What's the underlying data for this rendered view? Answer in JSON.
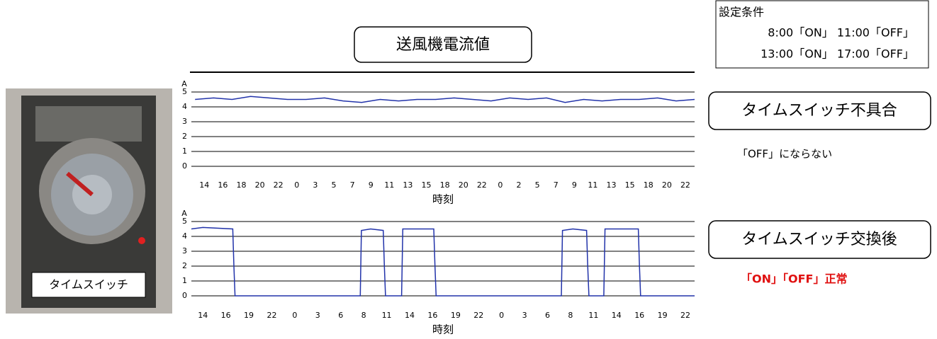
{
  "title": "送風機電流値",
  "conditions": {
    "heading": "設定条件",
    "lines": [
      "8:00「ON」 11:00「OFF」",
      "13:00「ON」 17:00「OFF」"
    ]
  },
  "photo_label": "タイムスイッチ",
  "panels": [
    {
      "label": "タイムスイッチ不具合",
      "note": "「OFF」にならない"
    },
    {
      "label": "タイムスイッチ交換後",
      "note": "「ON」「OFF」正常"
    }
  ],
  "chart_data": [
    {
      "type": "line",
      "y_label": "A",
      "x_label": "時刻",
      "color": "#2233aa",
      "grid": true,
      "x": [
        -0.5,
        0.5,
        1.5,
        2.5,
        3.5,
        4.5,
        5.5,
        6.5,
        7.5,
        8.5,
        9.5,
        10.5,
        11.5,
        12.5,
        13.5,
        14.5,
        15.5,
        16.5,
        17.5,
        18.5,
        19.5,
        20.5,
        21.5,
        22.5,
        23.5,
        24.5,
        25.5,
        26.5
      ],
      "values": [
        4.5,
        4.6,
        4.5,
        4.7,
        4.6,
        4.5,
        4.5,
        4.6,
        4.4,
        4.3,
        4.5,
        4.4,
        4.5,
        4.5,
        4.6,
        4.5,
        4.4,
        4.6,
        4.5,
        4.6,
        4.3,
        4.5,
        4.4,
        4.5,
        4.5,
        4.6,
        4.4,
        4.5
      ],
      "xlim": [
        -0.7,
        26.5
      ],
      "ylim": [
        0,
        5
      ],
      "yticks": [
        0,
        1,
        2,
        3,
        4,
        5
      ],
      "xticks": [
        {
          "value": 0,
          "label": "14"
        },
        {
          "value": 1,
          "label": "16"
        },
        {
          "value": 2,
          "label": "18"
        },
        {
          "value": 3,
          "label": "20"
        },
        {
          "value": 4,
          "label": "22"
        },
        {
          "value": 5,
          "label": "0"
        },
        {
          "value": 6,
          "label": "3"
        },
        {
          "value": 7,
          "label": "5"
        },
        {
          "value": 8,
          "label": "7"
        },
        {
          "value": 9,
          "label": "9"
        },
        {
          "value": 10,
          "label": "11"
        },
        {
          "value": 11,
          "label": "13"
        },
        {
          "value": 12,
          "label": "15"
        },
        {
          "value": 13,
          "label": "18"
        },
        {
          "value": 14,
          "label": "20"
        },
        {
          "value": 15,
          "label": "22"
        },
        {
          "value": 16,
          "label": "0"
        },
        {
          "value": 17,
          "label": "2"
        },
        {
          "value": 18,
          "label": "5"
        },
        {
          "value": 19,
          "label": "7"
        },
        {
          "value": 20,
          "label": "9"
        },
        {
          "value": 21,
          "label": "11"
        },
        {
          "value": 22,
          "label": "13"
        },
        {
          "value": 23,
          "label": "15"
        },
        {
          "value": 24,
          "label": "18"
        },
        {
          "value": 25,
          "label": "20"
        },
        {
          "value": 26,
          "label": "22"
        }
      ]
    },
    {
      "type": "line",
      "y_label": "A",
      "x_label": "時刻",
      "color": "#2233aa",
      "grid": true,
      "x": [
        -0.5,
        0,
        1.3,
        1.35,
        1.4,
        6.85,
        6.9,
        7.3,
        7.85,
        7.9,
        7.95,
        8.65,
        8.7,
        10.05,
        10.1,
        10.15,
        15.6,
        15.65,
        16.1,
        16.7,
        16.75,
        16.8,
        17.45,
        17.5,
        18.95,
        19,
        19.05,
        21.4
      ],
      "values": [
        4.5,
        4.6,
        4.5,
        2,
        0,
        0,
        4.4,
        4.5,
        4.4,
        2,
        0,
        0,
        4.5,
        4.5,
        2,
        0,
        0,
        4.4,
        4.5,
        4.4,
        2,
        0,
        0,
        4.5,
        4.5,
        2,
        0,
        0
      ],
      "xlim": [
        -0.5,
        21.4
      ],
      "ylim": [
        0,
        5
      ],
      "yticks": [
        0,
        1,
        2,
        3,
        4,
        5
      ],
      "xticks": [
        {
          "value": 0,
          "label": "14"
        },
        {
          "value": 1,
          "label": "16"
        },
        {
          "value": 2,
          "label": "19"
        },
        {
          "value": 3,
          "label": "22"
        },
        {
          "value": 4,
          "label": "0"
        },
        {
          "value": 5,
          "label": "3"
        },
        {
          "value": 6,
          "label": "6"
        },
        {
          "value": 7,
          "label": "8"
        },
        {
          "value": 8,
          "label": "11"
        },
        {
          "value": 9,
          "label": "14"
        },
        {
          "value": 10,
          "label": "16"
        },
        {
          "value": 11,
          "label": "19"
        },
        {
          "value": 12,
          "label": "22"
        },
        {
          "value": 13,
          "label": "0"
        },
        {
          "value": 14,
          "label": "3"
        },
        {
          "value": 15,
          "label": "6"
        },
        {
          "value": 16,
          "label": "8"
        },
        {
          "value": 17,
          "label": "11"
        },
        {
          "value": 18,
          "label": "14"
        },
        {
          "value": 19,
          "label": "16"
        },
        {
          "value": 20,
          "label": "19"
        },
        {
          "value": 21,
          "label": "22"
        }
      ]
    }
  ]
}
